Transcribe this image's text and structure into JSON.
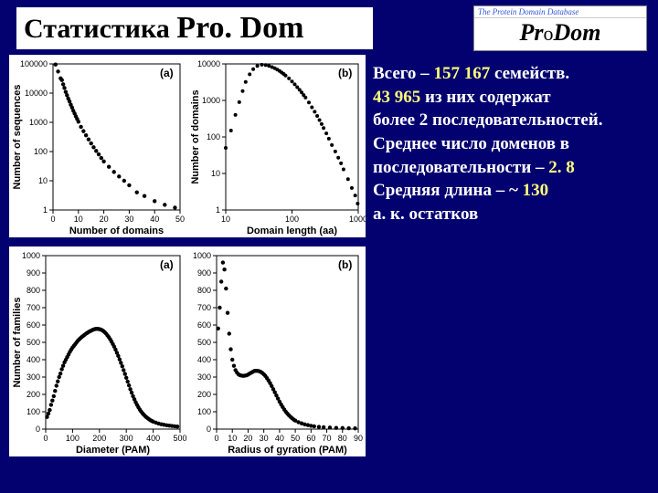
{
  "title": {
    "word1": "Статистика",
    "word2": "Pro. Dom"
  },
  "logo": {
    "top_text": "The Protein Domain Database",
    "main_pre": "Pr",
    "main_mid": "o",
    "main_post": "Dom"
  },
  "stats": {
    "l1a": "Всего – ",
    "l1b": "157 167",
    "l1c": " семейств.",
    "l2a": " ",
    "l2b": "43 965",
    "l2c": " из них содержат",
    "l3": "более 2 последовательностей.",
    "l4": "Среднее число доменов в",
    "l5a": " последовательности – ",
    "l5b": "2. 8",
    "l6a": " Средняя длина – ~ ",
    "l6b": "130",
    "l7": " а. к. остатков"
  },
  "chart_a": {
    "type": "scatter",
    "panel_label": "(a)",
    "xlabel": "Number of domains",
    "ylabel": "Number of sequences",
    "xlim": [
      0,
      50
    ],
    "xtick_step": 10,
    "ylog": true,
    "ylim": [
      1,
      100000
    ],
    "yticks": [
      1,
      10,
      100,
      1000,
      10000,
      100000
    ],
    "yticklabels": [
      "1",
      "10",
      "100",
      "1000",
      "10000",
      "100000"
    ],
    "background_color": "#ffffff",
    "grid": false,
    "marker": "circle",
    "marker_size": 2.2,
    "marker_color": "#000000",
    "points": [
      [
        1,
        95000
      ],
      [
        2,
        55000
      ],
      [
        3,
        32000
      ],
      [
        3.5,
        28000
      ],
      [
        4,
        20000
      ],
      [
        4.5,
        15000
      ],
      [
        5,
        11000
      ],
      [
        5.5,
        8500
      ],
      [
        6,
        6500
      ],
      [
        6.5,
        5200
      ],
      [
        7,
        4000
      ],
      [
        7.5,
        3200
      ],
      [
        8,
        2500
      ],
      [
        8.5,
        2000
      ],
      [
        9,
        1600
      ],
      [
        9.5,
        1300
      ],
      [
        10,
        1050
      ],
      [
        11,
        700
      ],
      [
        12,
        500
      ],
      [
        13,
        360
      ],
      [
        14,
        260
      ],
      [
        15,
        190
      ],
      [
        16,
        140
      ],
      [
        17,
        105
      ],
      [
        18,
        80
      ],
      [
        19,
        60
      ],
      [
        20,
        46
      ],
      [
        22,
        30
      ],
      [
        24,
        20
      ],
      [
        26,
        14
      ],
      [
        28,
        10
      ],
      [
        30,
        7
      ],
      [
        33,
        4
      ],
      [
        36,
        3
      ],
      [
        40,
        2
      ],
      [
        44,
        1.5
      ],
      [
        48,
        1.2
      ]
    ]
  },
  "chart_b": {
    "type": "scatter",
    "panel_label": "(b)",
    "xlabel": "Domain length (aa)",
    "ylabel": "Number of domains",
    "xlog": true,
    "xlim": [
      10,
      1000
    ],
    "xticks": [
      10,
      100,
      1000
    ],
    "xticklabels": [
      "10",
      "100",
      "1000"
    ],
    "ylog": true,
    "ylim": [
      1,
      10000
    ],
    "yticks": [
      1,
      10,
      100,
      1000,
      10000
    ],
    "yticklabels": [
      "1",
      "10",
      "100",
      "1000",
      "10000"
    ],
    "background_color": "#ffffff",
    "grid": false,
    "marker": "circle",
    "marker_size": 2.0,
    "marker_color": "#000000",
    "points": [
      [
        10,
        50
      ],
      [
        12,
        150
      ],
      [
        14,
        400
      ],
      [
        16,
        900
      ],
      [
        18,
        1800
      ],
      [
        20,
        3200
      ],
      [
        23,
        5200
      ],
      [
        26,
        7200
      ],
      [
        30,
        8800
      ],
      [
        35,
        9500
      ],
      [
        40,
        9300
      ],
      [
        45,
        8800
      ],
      [
        50,
        8200
      ],
      [
        55,
        7600
      ],
      [
        60,
        7000
      ],
      [
        65,
        6400
      ],
      [
        70,
        5800
      ],
      [
        75,
        5300
      ],
      [
        80,
        4800
      ],
      [
        90,
        4000
      ],
      [
        100,
        3300
      ],
      [
        110,
        2750
      ],
      [
        120,
        2300
      ],
      [
        130,
        1950
      ],
      [
        140,
        1650
      ],
      [
        150,
        1400
      ],
      [
        160,
        1200
      ],
      [
        180,
        880
      ],
      [
        200,
        650
      ],
      [
        220,
        490
      ],
      [
        240,
        375
      ],
      [
        260,
        290
      ],
      [
        280,
        225
      ],
      [
        300,
        175
      ],
      [
        330,
        125
      ],
      [
        360,
        90
      ],
      [
        400,
        60
      ],
      [
        450,
        40
      ],
      [
        500,
        27
      ],
      [
        550,
        19
      ],
      [
        600,
        13
      ],
      [
        700,
        7
      ],
      [
        800,
        4
      ],
      [
        900,
        2.5
      ],
      [
        980,
        1.5
      ]
    ]
  },
  "chart_c": {
    "type": "scatter",
    "panel_label": "(a)",
    "xlabel": "Diameter (PAM)",
    "ylabel": "Number of families",
    "xlim": [
      0,
      500
    ],
    "xtick_step": 100,
    "ylim": [
      0,
      1000
    ],
    "ytick_step": 100,
    "background_color": "#ffffff",
    "grid": false,
    "marker": "circle",
    "marker_size": 2.2,
    "marker_color": "#000000",
    "points": [
      [
        5,
        70
      ],
      [
        10,
        90
      ],
      [
        15,
        110
      ],
      [
        20,
        140
      ],
      [
        25,
        165
      ],
      [
        30,
        190
      ],
      [
        35,
        220
      ],
      [
        40,
        250
      ],
      [
        45,
        275
      ],
      [
        50,
        300
      ],
      [
        55,
        320
      ],
      [
        60,
        345
      ],
      [
        65,
        365
      ],
      [
        70,
        385
      ],
      [
        75,
        400
      ],
      [
        80,
        415
      ],
      [
        85,
        430
      ],
      [
        90,
        445
      ],
      [
        95,
        458
      ],
      [
        100,
        470
      ],
      [
        105,
        480
      ],
      [
        110,
        490
      ],
      [
        115,
        500
      ],
      [
        120,
        510
      ],
      [
        125,
        518
      ],
      [
        130,
        525
      ],
      [
        135,
        532
      ],
      [
        140,
        538
      ],
      [
        145,
        544
      ],
      [
        150,
        550
      ],
      [
        155,
        555
      ],
      [
        160,
        560
      ],
      [
        165,
        564
      ],
      [
        170,
        568
      ],
      [
        175,
        572
      ],
      [
        180,
        575
      ],
      [
        185,
        577
      ],
      [
        190,
        578
      ],
      [
        195,
        578
      ],
      [
        200,
        576
      ],
      [
        205,
        574
      ],
      [
        210,
        570
      ],
      [
        215,
        565
      ],
      [
        220,
        558
      ],
      [
        225,
        550
      ],
      [
        230,
        540
      ],
      [
        235,
        530
      ],
      [
        240,
        518
      ],
      [
        245,
        504
      ],
      [
        250,
        490
      ],
      [
        255,
        475
      ],
      [
        260,
        458
      ],
      [
        265,
        440
      ],
      [
        270,
        422
      ],
      [
        275,
        402
      ],
      [
        280,
        382
      ],
      [
        285,
        362
      ],
      [
        290,
        340
      ],
      [
        295,
        318
      ],
      [
        300,
        296
      ],
      [
        305,
        274
      ],
      [
        310,
        252
      ],
      [
        315,
        230
      ],
      [
        320,
        210
      ],
      [
        325,
        190
      ],
      [
        330,
        172
      ],
      [
        335,
        155
      ],
      [
        340,
        140
      ],
      [
        345,
        126
      ],
      [
        350,
        113
      ],
      [
        355,
        102
      ],
      [
        360,
        92
      ],
      [
        365,
        83
      ],
      [
        370,
        75
      ],
      [
        375,
        68
      ],
      [
        380,
        62
      ],
      [
        385,
        56
      ],
      [
        390,
        51
      ],
      [
        395,
        47
      ],
      [
        400,
        43
      ],
      [
        410,
        37
      ],
      [
        420,
        32
      ],
      [
        430,
        28
      ],
      [
        440,
        25
      ],
      [
        450,
        22
      ],
      [
        460,
        20
      ],
      [
        470,
        18
      ],
      [
        480,
        16
      ],
      [
        490,
        15
      ]
    ]
  },
  "chart_d": {
    "type": "scatter",
    "panel_label": "(b)",
    "xlabel": "Radius of gyration (PAM)",
    "ylabel": "",
    "xlim": [
      0,
      90
    ],
    "xtick_step": 10,
    "ylim": [
      0,
      1000
    ],
    "ytick_step": 100,
    "background_color": "#ffffff",
    "grid": false,
    "marker": "circle",
    "marker_size": 2.2,
    "marker_color": "#000000",
    "points": [
      [
        1,
        580
      ],
      [
        2,
        700
      ],
      [
        3,
        850
      ],
      [
        4,
        960
      ],
      [
        5,
        920
      ],
      [
        6,
        810
      ],
      [
        7,
        670
      ],
      [
        8,
        550
      ],
      [
        9,
        460
      ],
      [
        10,
        400
      ],
      [
        11,
        365
      ],
      [
        12,
        340
      ],
      [
        13,
        325
      ],
      [
        14,
        315
      ],
      [
        15,
        310
      ],
      [
        16,
        308
      ],
      [
        17,
        307
      ],
      [
        18,
        308
      ],
      [
        19,
        310
      ],
      [
        20,
        314
      ],
      [
        21,
        320
      ],
      [
        22,
        325
      ],
      [
        23,
        330
      ],
      [
        24,
        335
      ],
      [
        25,
        336
      ],
      [
        26,
        336
      ],
      [
        27,
        334
      ],
      [
        28,
        330
      ],
      [
        29,
        324
      ],
      [
        30,
        316
      ],
      [
        31,
        306
      ],
      [
        32,
        294
      ],
      [
        33,
        280
      ],
      [
        34,
        265
      ],
      [
        35,
        248
      ],
      [
        36,
        230
      ],
      [
        37,
        212
      ],
      [
        38,
        194
      ],
      [
        39,
        176
      ],
      [
        40,
        158
      ],
      [
        41,
        142
      ],
      [
        42,
        127
      ],
      [
        43,
        113
      ],
      [
        44,
        100
      ],
      [
        45,
        89
      ],
      [
        46,
        79
      ],
      [
        47,
        70
      ],
      [
        48,
        62
      ],
      [
        49,
        55
      ],
      [
        50,
        49
      ],
      [
        52,
        40
      ],
      [
        54,
        33
      ],
      [
        56,
        27
      ],
      [
        58,
        23
      ],
      [
        60,
        19
      ],
      [
        62,
        16
      ],
      [
        65,
        13
      ],
      [
        68,
        11
      ],
      [
        72,
        9
      ],
      [
        76,
        7
      ],
      [
        80,
        6
      ],
      [
        84,
        5
      ],
      [
        88,
        4
      ]
    ]
  }
}
